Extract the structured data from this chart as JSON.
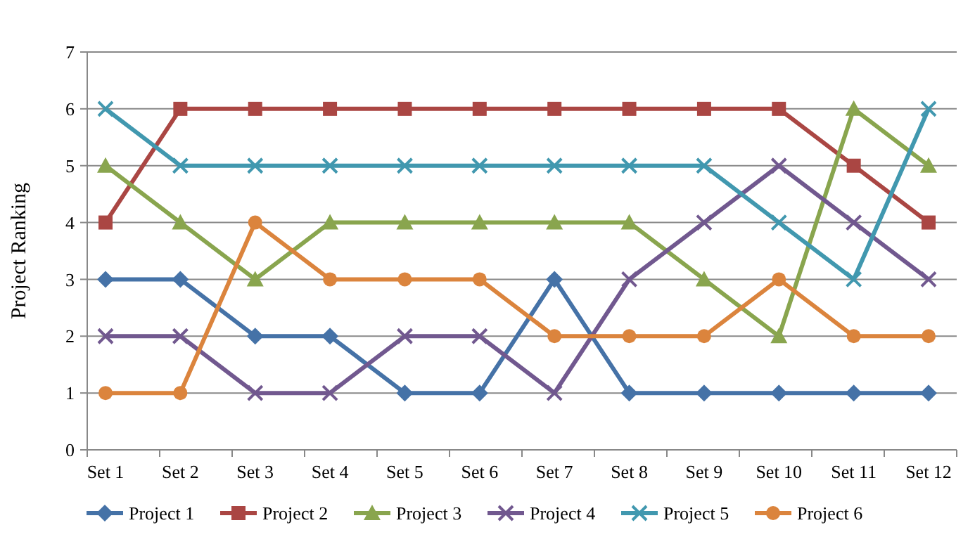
{
  "chart_data": {
    "type": "line",
    "ylabel": "Project Ranking",
    "categories": [
      "Set 1",
      "Set 2",
      "Set 3",
      "Set 4",
      "Set 5",
      "Set 6",
      "Set 7",
      "Set 8",
      "Set 9",
      "Set 10",
      "Set 11",
      "Set 12"
    ],
    "ylim": [
      0,
      7
    ],
    "yticks": [
      0,
      1,
      2,
      3,
      4,
      5,
      6,
      7
    ],
    "grid": "y",
    "legend": "bottom",
    "line_style": "solid",
    "series": [
      {
        "name": "Project 1",
        "color": "#4572a7",
        "marker": "diamond",
        "values": [
          3,
          3,
          2,
          2,
          1,
          1,
          3,
          1,
          1,
          1,
          1,
          1
        ]
      },
      {
        "name": "Project 2",
        "color": "#aa4643",
        "marker": "square",
        "values": [
          4,
          6,
          6,
          6,
          6,
          6,
          6,
          6,
          6,
          6,
          5,
          4
        ]
      },
      {
        "name": "Project 3",
        "color": "#89a54e",
        "marker": "triangle",
        "values": [
          5,
          4,
          3,
          4,
          4,
          4,
          4,
          4,
          3,
          2,
          6,
          5
        ]
      },
      {
        "name": "Project 4",
        "color": "#71588f",
        "marker": "cross",
        "values": [
          2,
          2,
          1,
          1,
          2,
          2,
          1,
          3,
          4,
          5,
          4,
          3
        ]
      },
      {
        "name": "Project 5",
        "color": "#4198af",
        "marker": "cross",
        "values": [
          6,
          5,
          5,
          5,
          5,
          5,
          5,
          5,
          5,
          4,
          3,
          6
        ]
      },
      {
        "name": "Project 6",
        "color": "#db843d",
        "marker": "circle",
        "values": [
          1,
          1,
          4,
          3,
          3,
          3,
          2,
          2,
          2,
          3,
          2,
          2
        ]
      }
    ]
  }
}
